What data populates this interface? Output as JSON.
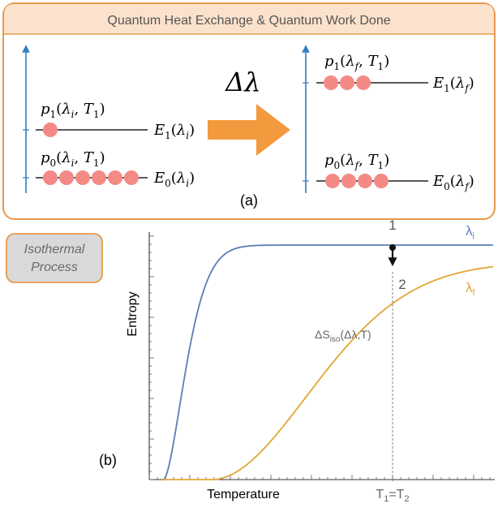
{
  "panel_a": {
    "title": "Quantum Heat Exchange & Quantum Work Done",
    "label": "(a)",
    "arrow_label": "Δλ",
    "colors": {
      "frame": "#e69a4c",
      "header_fill": "#fbe2cc",
      "arrow": "#f39a3e",
      "particle": "#f48a85",
      "axis": "#2f7fc1"
    },
    "left": {
      "upper": {
        "prob": {
          "base": "p",
          "sub": "1",
          "args": [
            "λ",
            "i",
            "T",
            "1"
          ]
        },
        "energy": {
          "base": "E",
          "sub": "1",
          "arg": "λ",
          "argsub": "i"
        },
        "particles": 1
      },
      "lower": {
        "prob": {
          "base": "p",
          "sub": "0",
          "args": [
            "λ",
            "i",
            "T",
            "1"
          ]
        },
        "energy": {
          "base": "E",
          "sub": "0",
          "arg": "λ",
          "argsub": "i"
        },
        "particles": 6
      }
    },
    "right": {
      "upper": {
        "prob": {
          "base": "p",
          "sub": "1",
          "args": [
            "λ",
            "f",
            "T",
            "1"
          ]
        },
        "energy": {
          "base": "E",
          "sub": "1",
          "arg": "λ",
          "argsub": "f"
        },
        "particles": 3
      },
      "lower": {
        "prob": {
          "base": "p",
          "sub": "0",
          "args": [
            "λ",
            "f",
            "T",
            "1"
          ]
        },
        "energy": {
          "base": "E",
          "sub": "0",
          "arg": "λ",
          "argsub": "f"
        },
        "particles": 4
      }
    }
  },
  "panel_b": {
    "label": "(b)",
    "process_badge": [
      "Isothermal",
      "Process"
    ],
    "ylabel": "Entropy",
    "xlabel": "Temperature",
    "xtick_label": {
      "a": "T",
      "asub": "1",
      "eq": "=",
      "b": "T",
      "bsub": "2"
    },
    "point_labels": [
      "1",
      "2"
    ],
    "curve_labels": [
      {
        "base": "λ",
        "sub": "i"
      },
      {
        "base": "λ",
        "sub": "f"
      }
    ],
    "delta_label": {
      "pre": "ΔS",
      "sub": "iso",
      "post": "(Δλ,T)"
    },
    "colors": {
      "lambda_i": "#5b7db6",
      "lambda_f": "#e3a535",
      "badge_fill": "#d9d9d9",
      "badge_stroke": "#e69a4c"
    }
  }
}
